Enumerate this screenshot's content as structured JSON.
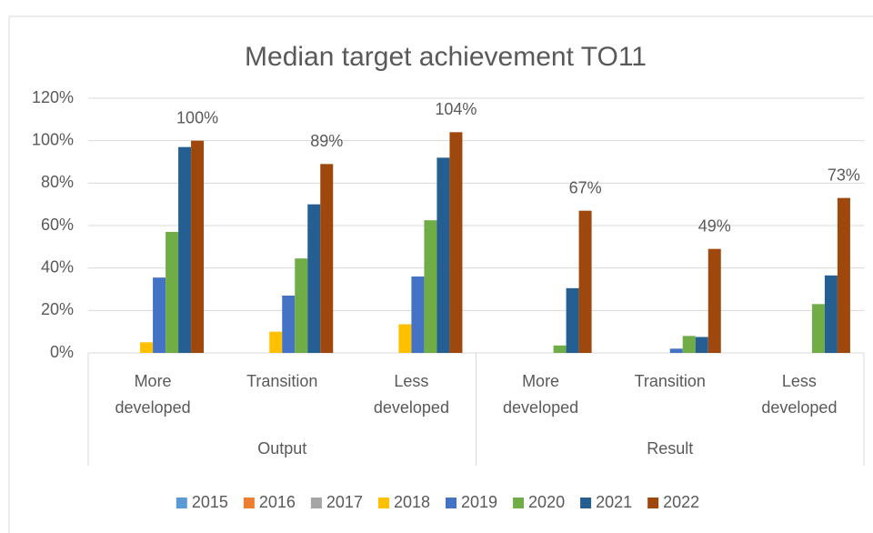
{
  "chart_data": {
    "type": "bar",
    "title": "Median target achievement TO11",
    "groups": [
      {
        "name": "Output",
        "categories": [
          "More developed",
          "Transition",
          "Less developed"
        ]
      },
      {
        "name": "Result",
        "categories": [
          "More developed",
          "Transition",
          "Less developed"
        ]
      }
    ],
    "series": [
      {
        "name": "2015",
        "color": "#5b9bd5",
        "values": [
          null,
          null,
          null,
          null,
          null,
          null
        ]
      },
      {
        "name": "2016",
        "color": "#ed7d31",
        "values": [
          null,
          null,
          null,
          null,
          null,
          null
        ]
      },
      {
        "name": "2017",
        "color": "#a5a5a5",
        "values": [
          null,
          null,
          null,
          null,
          null,
          null
        ]
      },
      {
        "name": "2018",
        "color": "#ffc000",
        "values": [
          5,
          10,
          13.5,
          null,
          null,
          null
        ]
      },
      {
        "name": "2019",
        "color": "#4472c4",
        "values": [
          35.5,
          27,
          36,
          null,
          2,
          null
        ]
      },
      {
        "name": "2020",
        "color": "#70ad47",
        "values": [
          57,
          44.5,
          62.5,
          3.5,
          8,
          23
        ]
      },
      {
        "name": "2021",
        "color": "#255e91",
        "values": [
          97,
          70,
          92,
          30.5,
          7.5,
          36.5
        ]
      },
      {
        "name": "2022",
        "color": "#9e480e",
        "values": [
          100,
          89,
          104,
          67,
          49,
          73
        ],
        "value_labels": [
          "100%",
          "89%",
          "104%",
          "67%",
          "49%",
          "73%"
        ]
      }
    ],
    "ylim": [
      0,
      120
    ],
    "yticks": [
      {
        "value": 0,
        "label": "0%"
      },
      {
        "value": 20,
        "label": "20%"
      },
      {
        "value": 40,
        "label": "40%"
      },
      {
        "value": 60,
        "label": "60%"
      },
      {
        "value": 80,
        "label": "80%"
      },
      {
        "value": 100,
        "label": "100%"
      },
      {
        "value": 120,
        "label": "120%"
      }
    ],
    "grid": true,
    "legend": "bottom"
  }
}
